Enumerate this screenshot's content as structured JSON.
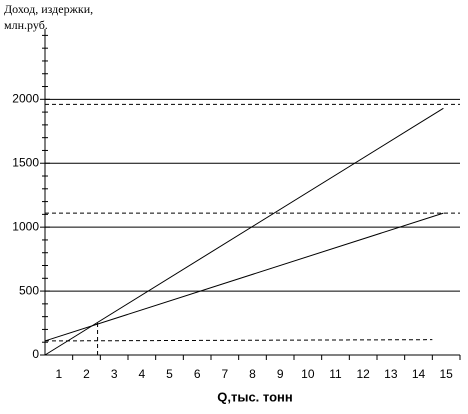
{
  "chart_data": {
    "type": "line",
    "ylabel": [
      "Доход, издержки,",
      "млн.руб."
    ],
    "xlabel": "Q,тыс. тонн",
    "categories": [
      "1",
      "2",
      "3",
      "4",
      "5",
      "6",
      "7",
      "8",
      "9",
      "10",
      "11",
      "12",
      "13",
      "14",
      "15"
    ],
    "xlim": [
      0,
      15
    ],
    "xticks": [
      1,
      2,
      3,
      4,
      5,
      6,
      7,
      8,
      9,
      10,
      11,
      12,
      13,
      14,
      15
    ],
    "ylim": [
      0,
      2550
    ],
    "yticks": [
      0,
      500,
      1000,
      1500,
      2000
    ],
    "yminor": [
      100,
      200,
      300,
      400,
      600,
      700,
      800,
      900,
      1100,
      1200,
      1300,
      1400,
      1600,
      1700,
      1800,
      1900,
      2100,
      2200,
      2300,
      2400,
      2500
    ],
    "grid": true,
    "series": [
      {
        "color": "#000000",
        "x": [
          0,
          14.4
        ],
        "values": [
          0,
          1930
        ]
      },
      {
        "color": "#000000",
        "x": [
          0,
          14.4
        ],
        "values": [
          110,
          1110
        ]
      }
    ],
    "reference_lines": [
      {
        "x": [
          0,
          15
        ],
        "values": [
          1960,
          1960
        ]
      },
      {
        "x": [
          0,
          15
        ],
        "values": [
          1110,
          1110
        ]
      },
      {
        "x": [
          0,
          14
        ],
        "values": [
          110,
          120
        ]
      },
      {
        "x": [
          1.9,
          1.9
        ],
        "values": [
          0,
          255
        ]
      }
    ]
  }
}
